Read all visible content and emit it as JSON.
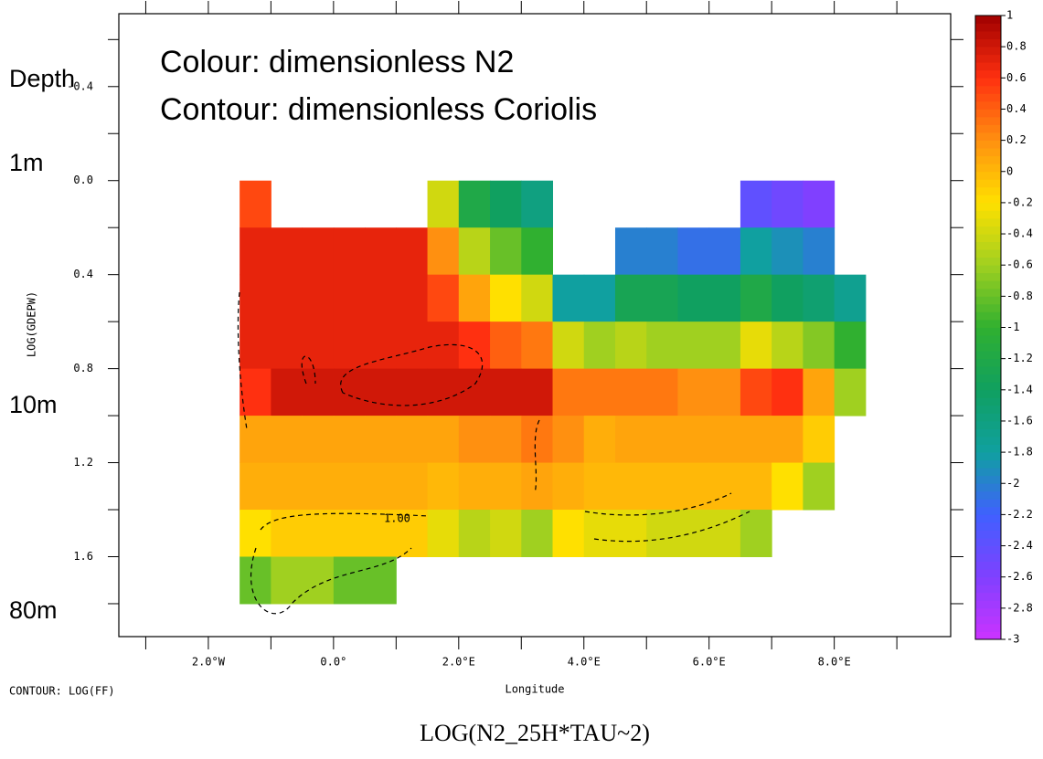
{
  "chart_data": {
    "type": "heatmap",
    "title": "LOG(N2_25H*TAU~2)",
    "annotations": [
      "Colour: dimensionless N2",
      "Contour: dimensionless Coriolis",
      "Depth",
      "1m",
      "10m",
      "80m"
    ],
    "contour_note": "CONTOUR: LOG(FF)",
    "contour_labels": [
      "1.00"
    ],
    "x_label": "Longitude",
    "y_label": "LOG(GDEPW)",
    "xlim": [
      -3.43,
      9.86
    ],
    "ylim": [
      -0.71,
      1.94
    ],
    "xticks": [
      {
        "value": -2,
        "label": "2.0°W"
      },
      {
        "value": 0,
        "label": "0.0°"
      },
      {
        "value": 2,
        "label": "2.0°E"
      },
      {
        "value": 4,
        "label": "4.0°E"
      },
      {
        "value": 6,
        "label": "6.0°E"
      },
      {
        "value": 8,
        "label": "8.0°E"
      }
    ],
    "xminorticks": [
      -3,
      -1,
      1,
      3,
      5,
      7,
      9
    ],
    "yticks": [
      {
        "value": -0.4,
        "label": "-0.4"
      },
      {
        "value": 0,
        "label": "0.0"
      },
      0.4,
      0.8,
      1.2,
      1.6
    ],
    "yminorticks": [
      -0.6,
      -0.2,
      0.2,
      0.6,
      1.0,
      1.4,
      1.8
    ],
    "x": [
      -1.5,
      -1,
      -0.5,
      0,
      0.5,
      1,
      1.5,
      2,
      2.5,
      3,
      3.5,
      4,
      4.5,
      5,
      5.5,
      6,
      6.5,
      7,
      7.5,
      8,
      8.5
    ],
    "y": [
      0,
      0.2,
      0.4,
      0.6,
      0.8,
      1.0,
      1.2,
      1.4,
      1.6,
      1.8
    ],
    "z": [
      [
        0.5,
        null,
        null,
        null,
        null,
        null,
        -0.4,
        -1.2,
        -1.4,
        -1.6,
        null,
        null,
        null,
        null,
        null,
        null,
        -2.4,
        -2.5,
        -2.6,
        null
      ],
      [
        0.7,
        0.7,
        0.7,
        0.7,
        0.7,
        0.7,
        0.2,
        -0.5,
        -0.8,
        -1.0,
        null,
        null,
        -2.0,
        -2.0,
        -2.1,
        -2.1,
        -1.8,
        -1.9,
        -2.0,
        null
      ],
      [
        0.7,
        0.7,
        0.7,
        0.7,
        0.7,
        0.7,
        0.5,
        0.1,
        -0.2,
        -0.4,
        -1.8,
        -1.8,
        -1.3,
        -1.3,
        -1.4,
        -1.4,
        -1.2,
        -1.4,
        -1.5,
        -1.7
      ],
      [
        0.7,
        0.7,
        0.7,
        0.7,
        0.7,
        0.7,
        0.7,
        0.6,
        0.4,
        0.3,
        -0.4,
        -0.6,
        -0.5,
        -0.6,
        -0.6,
        -0.6,
        -0.3,
        -0.5,
        -0.7,
        -1.0
      ],
      [
        0.6,
        0.8,
        0.8,
        0.8,
        0.8,
        0.8,
        0.8,
        0.8,
        0.8,
        0.8,
        0.3,
        0.3,
        0.3,
        0.3,
        0.2,
        0.2,
        0.5,
        0.6,
        0.1,
        -0.6
      ],
      [
        0.1,
        0.1,
        0.1,
        0.1,
        0.1,
        0.1,
        0.1,
        0.2,
        0.2,
        0.3,
        0.2,
        0.05,
        0.1,
        0.1,
        0.1,
        0.1,
        0.1,
        0.1,
        -0.1,
        null
      ],
      [
        0.05,
        0.05,
        0.05,
        0.05,
        0.05,
        0.05,
        0,
        0.05,
        0.05,
        0.1,
        0.05,
        0,
        0,
        0,
        0,
        0,
        0,
        -0.2,
        -0.6,
        null
      ],
      [
        -0.2,
        -0.1,
        -0.1,
        -0.1,
        -0.1,
        -0.1,
        -0.3,
        -0.5,
        -0.4,
        -0.6,
        -0.2,
        -0.3,
        -0.3,
        -0.4,
        -0.4,
        -0.4,
        -0.6,
        null,
        null,
        null
      ],
      [
        -0.8,
        -0.6,
        -0.6,
        -0.8,
        -0.8,
        null,
        null,
        null,
        null,
        null,
        null,
        null,
        null,
        null,
        null,
        null,
        null,
        null,
        null,
        null
      ]
    ],
    "zlim": [
      -3,
      1
    ],
    "zticks": [
      1,
      0.8,
      0.6,
      0.4,
      0.2,
      0,
      -0.2,
      -0.4,
      -0.6,
      -0.8,
      -1,
      -1.2,
      -1.4,
      -1.6,
      -1.8,
      -2,
      -2.2,
      -2.4,
      -2.6,
      -2.8,
      -3
    ],
    "colormap": [
      "#cc33ff",
      "#8040ff",
      "#4060ff",
      "#10a0a0",
      "#10a060",
      "#30b030",
      "#a0d020",
      "#ffe000",
      "#ff9010",
      "#ff3010",
      "#a00000"
    ]
  }
}
